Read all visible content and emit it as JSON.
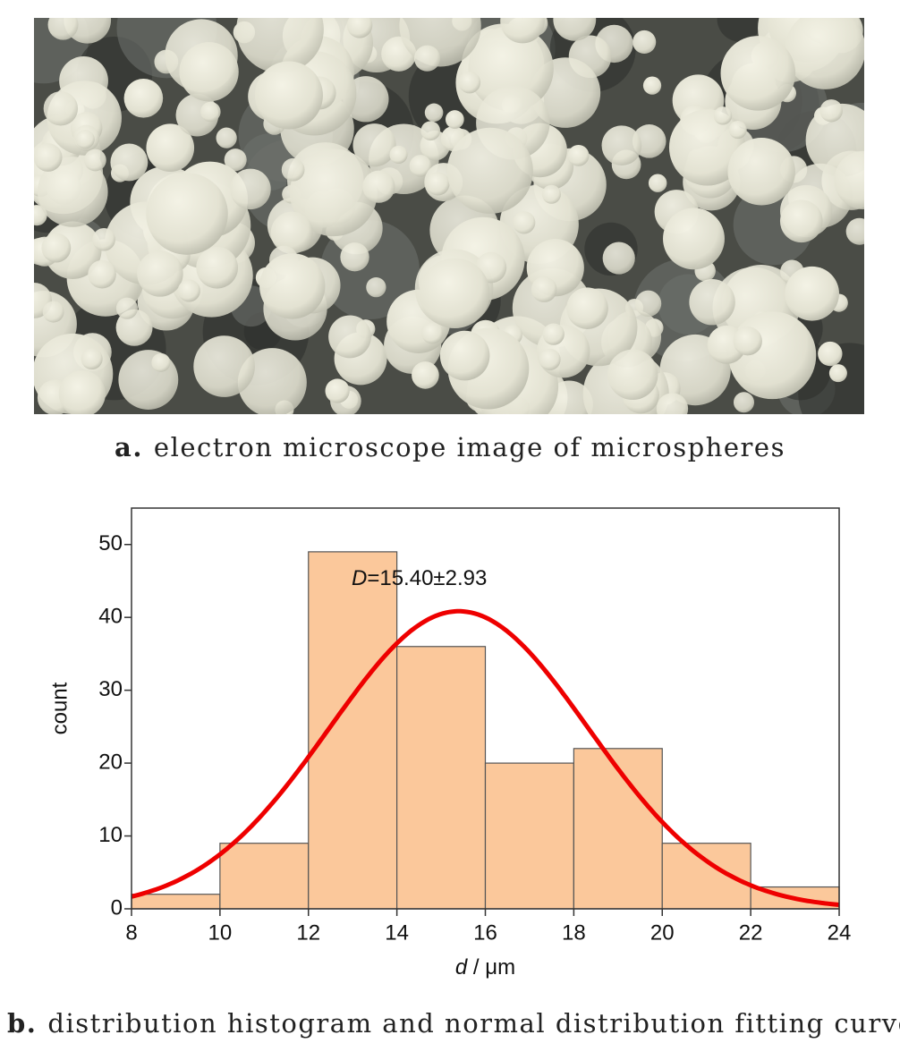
{
  "figure_a": {
    "label": "a.",
    "caption": "electron microscope image of microspheres"
  },
  "figure_b": {
    "label": "b.",
    "caption": "distribution histogram and normal distribution fitting curve"
  },
  "chart_data": {
    "type": "histogram",
    "bins": [
      8,
      10,
      12,
      14,
      16,
      18,
      20,
      22,
      24
    ],
    "values": [
      2,
      9,
      49,
      36,
      20,
      22,
      9,
      3
    ],
    "color": "#fbc89b",
    "xlim": [
      8,
      24
    ],
    "xticks": [
      8,
      10,
      12,
      14,
      16,
      18,
      20,
      22,
      24
    ],
    "ylim": [
      0,
      55
    ],
    "yticks": [
      0,
      10,
      20,
      30,
      40,
      50
    ],
    "y_label": "count",
    "x_label": {
      "symbol": "d",
      "unit": " / μm"
    },
    "fit": {
      "type": "normal",
      "mean": 15.4,
      "sd": 2.93,
      "color": "#ee0000",
      "label_symbol": "D",
      "label": "=15.40±2.93"
    }
  }
}
